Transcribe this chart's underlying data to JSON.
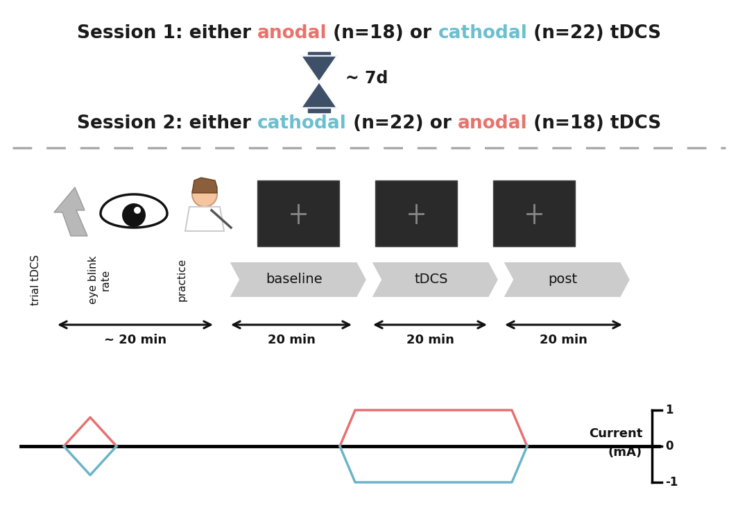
{
  "title1_parts": [
    {
      "text": "Session 1: either ",
      "color": "#1a1a1a"
    },
    {
      "text": "anodal",
      "color": "#e8736c"
    },
    {
      "text": " (n=18) or ",
      "color": "#1a1a1a"
    },
    {
      "text": "cathodal",
      "color": "#6bbfcf"
    },
    {
      "text": " (n=22) tDCS",
      "color": "#1a1a1a"
    }
  ],
  "title2_parts": [
    {
      "text": "Session 2: either ",
      "color": "#1a1a1a"
    },
    {
      "text": "cathodal",
      "color": "#6bbfcf"
    },
    {
      "text": " (n=22) or ",
      "color": "#1a1a1a"
    },
    {
      "text": "anodal",
      "color": "#e8736c"
    },
    {
      "text": " (n=18) tDCS",
      "color": "#1a1a1a"
    }
  ],
  "seven_days_text": "~ 7d",
  "anodal_color": "#e87070",
  "cathodal_color": "#6ab4c8",
  "hourglass_color": "#3d5068",
  "dashed_line_color": "#aaaaaa",
  "box_bg": "#2a2a2a",
  "cross_color": "#888888",
  "chevron_color": "#cccccc",
  "arrow_color": "#111111",
  "bg_color": "#ffffff",
  "title_fontsize": 19,
  "label_fontsize": 14,
  "time_fontsize": 13
}
